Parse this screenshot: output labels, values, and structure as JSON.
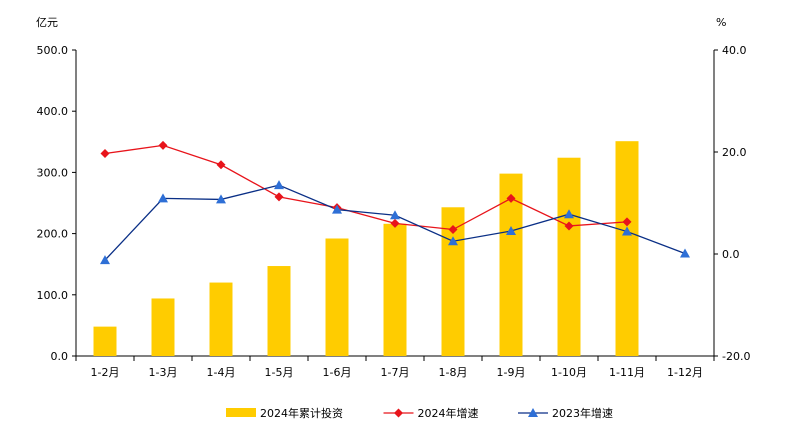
{
  "chart_data": {
    "type": "bar-line-combo",
    "categories": [
      "1-2月",
      "1-3月",
      "1-4月",
      "1-5月",
      "1-6月",
      "1-7月",
      "1-8月",
      "1-9月",
      "1-10月",
      "1-11月",
      "1-12月"
    ],
    "left_axis": {
      "unit": "亿元",
      "ticks": [
        "0.0",
        "100.0",
        "200.0",
        "300.0",
        "400.0",
        "500.0"
      ],
      "range": [
        0,
        500
      ]
    },
    "right_axis": {
      "unit": "%",
      "ticks": [
        "-20.0",
        "0.0",
        "20.0",
        "40.0"
      ],
      "range": [
        -20,
        40
      ]
    },
    "series": [
      {
        "name": "2024年累计投资",
        "kind": "bar",
        "axis": "left",
        "color": "#FFCC00",
        "values": [
          48,
          94,
          120,
          147,
          192,
          216,
          243,
          298,
          324,
          351,
          null
        ]
      },
      {
        "name": "2024年增速",
        "kind": "line",
        "axis": "right",
        "color": "#E8141B",
        "marker": "diamond",
        "values": [
          19.7,
          21.3,
          17.5,
          11.2,
          9.1,
          6.0,
          4.8,
          10.9,
          5.5,
          6.3,
          null
        ]
      },
      {
        "name": "2023年增速",
        "kind": "line",
        "axis": "right",
        "color": "#0A2F86",
        "marker_color": "#2E6FD6",
        "marker": "triangle",
        "values": [
          -1.2,
          10.9,
          10.7,
          13.5,
          8.7,
          7.6,
          2.5,
          4.5,
          7.8,
          4.4,
          0.1
        ]
      }
    ],
    "grid": false,
    "legend_position": "bottom"
  }
}
